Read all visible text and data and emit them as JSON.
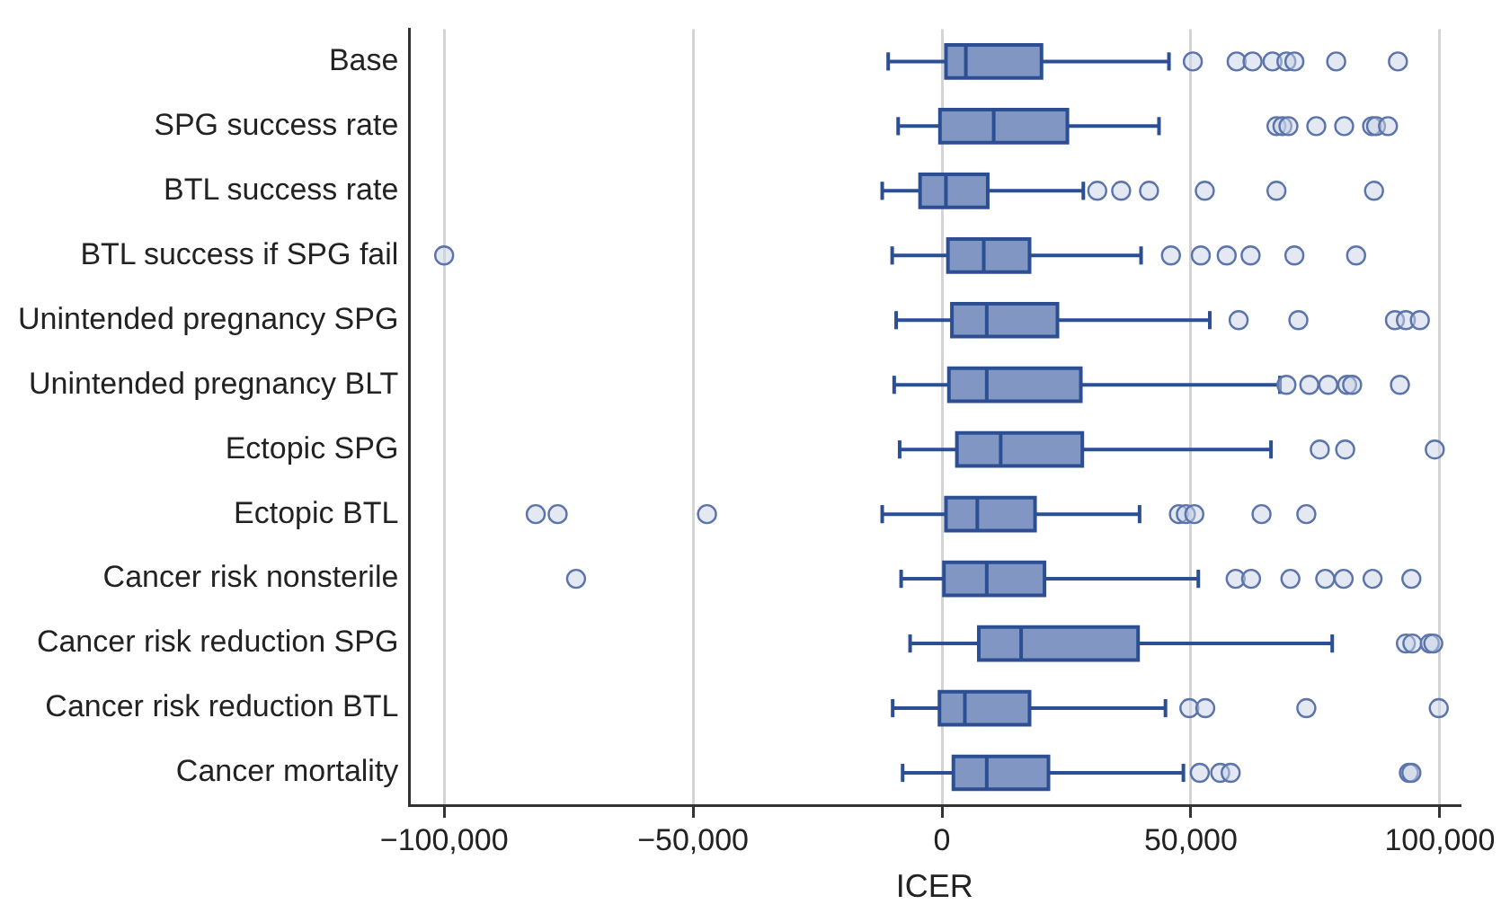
{
  "chart_data": {
    "type": "box",
    "orientation": "horizontal",
    "xlabel": "ICER",
    "color": "#8196c2",
    "categories": [
      "Base",
      "SPG success rate",
      "BTL success rate",
      "BTL success if SPG fail",
      "Unintended pregnancy SPG",
      "Unintended pregnancy BLT",
      "Ectopic SPG",
      "Ectopic BTL",
      "Cancer risk nonsterile",
      "Cancer risk reduction SPG",
      "Cancer risk reduction BTL",
      "Cancer mortality"
    ],
    "boxes": [
      {
        "low": -10800,
        "q1": 800,
        "median": 4800,
        "q3": 20000,
        "high": 45600,
        "outliers": [
          50400,
          59200,
          62400,
          66400,
          69200,
          70800,
          79200,
          91600
        ]
      },
      {
        "low": -8800,
        "q1": -400,
        "median": 10400,
        "q3": 25200,
        "high": 43600,
        "outliers": [
          67200,
          68400,
          69600,
          75200,
          80800,
          86400,
          87200,
          89600
        ]
      },
      {
        "low": -12000,
        "q1": -4400,
        "median": 800,
        "q3": 9200,
        "high": 28400,
        "outliers": [
          31200,
          36000,
          41600,
          52800,
          67200,
          86800
        ]
      },
      {
        "low": -10000,
        "q1": 1200,
        "median": 8400,
        "q3": 17600,
        "high": 40000,
        "outliers": [
          -100000,
          46000,
          52000,
          57200,
          62000,
          70800,
          83200
        ]
      },
      {
        "low": -9200,
        "q1": 2000,
        "median": 9000,
        "q3": 23200,
        "high": 53800,
        "outliers": [
          59600,
          71600,
          91000,
          93200,
          96000
        ]
      },
      {
        "low": -9600,
        "q1": 1400,
        "median": 9000,
        "q3": 27900,
        "high": 67900,
        "outliers": [
          69200,
          73800,
          77600,
          81400,
          82400,
          92000
        ]
      },
      {
        "low": -8500,
        "q1": 3000,
        "median": 11800,
        "q3": 28200,
        "high": 66100,
        "outliers": [
          75900,
          81000,
          99000
        ]
      },
      {
        "low": -12000,
        "q1": 800,
        "median": 7100,
        "q3": 18700,
        "high": 39700,
        "outliers": [
          -81600,
          -77200,
          -47200,
          47600,
          49000,
          50700,
          64200,
          73200
        ]
      },
      {
        "low": -8200,
        "q1": 400,
        "median": 9000,
        "q3": 20600,
        "high": 51500,
        "outliers": [
          -73500,
          59000,
          62100,
          70000,
          77000,
          80700,
          86500,
          94300
        ]
      },
      {
        "low": -6400,
        "q1": 7400,
        "median": 15900,
        "q3": 39400,
        "high": 78400,
        "outliers": [
          93200,
          94500,
          98000,
          98700
        ]
      },
      {
        "low": -9900,
        "q1": -500,
        "median": 4600,
        "q3": 17600,
        "high": 44900,
        "outliers": [
          49700,
          52900,
          73200,
          99800
        ]
      },
      {
        "low": -7900,
        "q1": 2300,
        "median": 9000,
        "q3": 21400,
        "high": 48500,
        "outliers": [
          51800,
          55900,
          58000,
          93800,
          94300
        ]
      }
    ],
    "xlim": [
      -107000,
      104000
    ],
    "xticks": [
      {
        "value": -100000,
        "label": "−100,000"
      },
      {
        "value": -50000,
        "label": "−50,000"
      },
      0,
      {
        "value": 50000,
        "label": "50,000"
      },
      {
        "value": 100000,
        "label": "100,000"
      }
    ],
    "grid": "x",
    "legend": false,
    "marker": "circle"
  }
}
